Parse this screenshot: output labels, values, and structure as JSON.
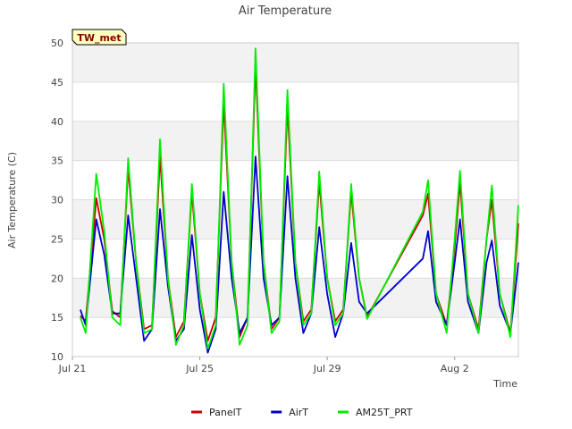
{
  "chart_data": {
    "type": "line",
    "title": "Air Temperature",
    "badge": "TW_met",
    "xlabel": "Time",
    "ylabel": "Air Temperature (C)",
    "xlim": [
      "2024-07-21",
      "2024-08-04"
    ],
    "ylim": [
      10,
      50
    ],
    "x_ticks": [
      {
        "label": "Jul 21",
        "date": "2024-07-21"
      },
      {
        "label": "Jul 25",
        "date": "2024-07-25"
      },
      {
        "label": "Jul 29",
        "date": "2024-07-29"
      },
      {
        "label": "Aug 2",
        "date": "2024-08-02"
      }
    ],
    "y_ticks": [
      10,
      15,
      20,
      25,
      30,
      35,
      40,
      45,
      50
    ],
    "grid": true,
    "legend_position": "bottom",
    "series": [
      {
        "name": "PanelT",
        "color": "#cc0000",
        "points": [
          [
            "2024-07-21 06:00",
            15.2
          ],
          [
            "2024-07-21 10:00",
            14.5
          ],
          [
            "2024-07-21 18:00",
            30.2
          ],
          [
            "2024-07-22 00:00",
            25.0
          ],
          [
            "2024-07-22 06:00",
            15.8
          ],
          [
            "2024-07-22 12:00",
            15.0
          ],
          [
            "2024-07-22 18:00",
            34.0
          ],
          [
            "2024-07-23 00:00",
            22.0
          ],
          [
            "2024-07-23 06:00",
            13.5
          ],
          [
            "2024-07-23 12:00",
            14.0
          ],
          [
            "2024-07-23 18:00",
            35.5
          ],
          [
            "2024-07-24 00:00",
            20.0
          ],
          [
            "2024-07-24 06:00",
            12.5
          ],
          [
            "2024-07-24 12:00",
            14.5
          ],
          [
            "2024-07-24 18:00",
            31.0
          ],
          [
            "2024-07-25 00:00",
            18.0
          ],
          [
            "2024-07-25 06:00",
            12.0
          ],
          [
            "2024-07-25 12:00",
            15.0
          ],
          [
            "2024-07-25 18:00",
            42.5
          ],
          [
            "2024-07-26 00:00",
            22.0
          ],
          [
            "2024-07-26 06:00",
            12.5
          ],
          [
            "2024-07-26 12:00",
            15.0
          ],
          [
            "2024-07-26 18:00",
            47.3
          ],
          [
            "2024-07-27 00:00",
            22.0
          ],
          [
            "2024-07-27 06:00",
            13.5
          ],
          [
            "2024-07-27 12:00",
            15.0
          ],
          [
            "2024-07-27 18:00",
            42.0
          ],
          [
            "2024-07-28 00:00",
            22.0
          ],
          [
            "2024-07-28 06:00",
            14.5
          ],
          [
            "2024-07-28 12:00",
            16.0
          ],
          [
            "2024-07-28 18:00",
            32.3
          ],
          [
            "2024-07-29 00:00",
            20.0
          ],
          [
            "2024-07-29 06:00",
            14.5
          ],
          [
            "2024-07-29 12:00",
            16.0
          ],
          [
            "2024-07-29 18:00",
            31.0
          ],
          [
            "2024-07-30 00:00",
            20.0
          ],
          [
            "2024-07-30 06:00",
            15.0
          ],
          [
            "2024-08-01 00:00",
            28.0
          ],
          [
            "2024-08-01 04:00",
            30.8
          ],
          [
            "2024-08-01 10:00",
            18.0
          ],
          [
            "2024-08-01 18:00",
            14.0
          ],
          [
            "2024-08-02 00:00",
            24.0
          ],
          [
            "2024-08-02 04:00",
            32.2
          ],
          [
            "2024-08-02 10:00",
            18.0
          ],
          [
            "2024-08-02 18:00",
            13.5
          ],
          [
            "2024-08-03 00:00",
            25.0
          ],
          [
            "2024-08-03 04:00",
            30.0
          ],
          [
            "2024-08-03 10:00",
            18.0
          ],
          [
            "2024-08-03 18:00",
            13.0
          ],
          [
            "2024-08-04 00:00",
            27.0
          ]
        ]
      },
      {
        "name": "AirT",
        "color": "#0000cc",
        "points": [
          [
            "2024-07-21 06:00",
            16.0
          ],
          [
            "2024-07-21 10:00",
            14.0
          ],
          [
            "2024-07-21 18:00",
            27.5
          ],
          [
            "2024-07-22 00:00",
            23.0
          ],
          [
            "2024-07-22 06:00",
            15.5
          ],
          [
            "2024-07-22 12:00",
            15.5
          ],
          [
            "2024-07-22 18:00",
            28.0
          ],
          [
            "2024-07-23 00:00",
            20.0
          ],
          [
            "2024-07-23 06:00",
            12.0
          ],
          [
            "2024-07-23 12:00",
            13.5
          ],
          [
            "2024-07-23 18:00",
            28.8
          ],
          [
            "2024-07-24 00:00",
            19.0
          ],
          [
            "2024-07-24 06:00",
            12.0
          ],
          [
            "2024-07-24 12:00",
            13.5
          ],
          [
            "2024-07-24 18:00",
            25.5
          ],
          [
            "2024-07-25 00:00",
            16.0
          ],
          [
            "2024-07-25 06:00",
            10.5
          ],
          [
            "2024-07-25 12:00",
            13.5
          ],
          [
            "2024-07-25 18:00",
            31.0
          ],
          [
            "2024-07-26 00:00",
            20.0
          ],
          [
            "2024-07-26 06:00",
            13.0
          ],
          [
            "2024-07-26 12:00",
            15.0
          ],
          [
            "2024-07-26 18:00",
            35.5
          ],
          [
            "2024-07-27 00:00",
            20.0
          ],
          [
            "2024-07-27 06:00",
            14.0
          ],
          [
            "2024-07-27 12:00",
            15.0
          ],
          [
            "2024-07-27 18:00",
            33.0
          ],
          [
            "2024-07-28 00:00",
            20.0
          ],
          [
            "2024-07-28 06:00",
            13.0
          ],
          [
            "2024-07-28 12:00",
            15.5
          ],
          [
            "2024-07-28 18:00",
            26.5
          ],
          [
            "2024-07-29 00:00",
            18.0
          ],
          [
            "2024-07-29 06:00",
            12.5
          ],
          [
            "2024-07-29 12:00",
            15.5
          ],
          [
            "2024-07-29 18:00",
            24.5
          ],
          [
            "2024-07-30 00:00",
            17.0
          ],
          [
            "2024-07-30 06:00",
            15.5
          ],
          [
            "2024-08-01 00:00",
            22.5
          ],
          [
            "2024-08-01 04:00",
            26.0
          ],
          [
            "2024-08-01 10:00",
            17.0
          ],
          [
            "2024-08-01 18:00",
            14.0
          ],
          [
            "2024-08-02 00:00",
            22.0
          ],
          [
            "2024-08-02 04:00",
            27.5
          ],
          [
            "2024-08-02 10:00",
            17.0
          ],
          [
            "2024-08-02 18:00",
            13.0
          ],
          [
            "2024-08-03 00:00",
            22.0
          ],
          [
            "2024-08-03 04:00",
            24.8
          ],
          [
            "2024-08-03 10:00",
            16.5
          ],
          [
            "2024-08-03 18:00",
            13.0
          ],
          [
            "2024-08-04 00:00",
            22.0
          ]
        ]
      },
      {
        "name": "AM25T_PRT",
        "color": "#00ee00",
        "points": [
          [
            "2024-07-21 06:00",
            15.0
          ],
          [
            "2024-07-21 10:00",
            13.0
          ],
          [
            "2024-07-21 18:00",
            33.3
          ],
          [
            "2024-07-22 00:00",
            26.0
          ],
          [
            "2024-07-22 06:00",
            15.0
          ],
          [
            "2024-07-22 12:00",
            14.0
          ],
          [
            "2024-07-22 18:00",
            35.3
          ],
          [
            "2024-07-23 00:00",
            22.0
          ],
          [
            "2024-07-23 06:00",
            13.0
          ],
          [
            "2024-07-23 12:00",
            13.5
          ],
          [
            "2024-07-23 18:00",
            37.7
          ],
          [
            "2024-07-24 00:00",
            20.0
          ],
          [
            "2024-07-24 06:00",
            11.5
          ],
          [
            "2024-07-24 12:00",
            14.0
          ],
          [
            "2024-07-24 18:00",
            32.0
          ],
          [
            "2024-07-25 00:00",
            18.0
          ],
          [
            "2024-07-25 06:00",
            11.0
          ],
          [
            "2024-07-25 12:00",
            14.0
          ],
          [
            "2024-07-25 18:00",
            44.8
          ],
          [
            "2024-07-26 00:00",
            22.0
          ],
          [
            "2024-07-26 06:00",
            11.5
          ],
          [
            "2024-07-26 12:00",
            14.0
          ],
          [
            "2024-07-26 18:00",
            49.3
          ],
          [
            "2024-07-27 00:00",
            22.0
          ],
          [
            "2024-07-27 06:00",
            13.0
          ],
          [
            "2024-07-27 12:00",
            14.5
          ],
          [
            "2024-07-27 18:00",
            44.0
          ],
          [
            "2024-07-28 00:00",
            22.0
          ],
          [
            "2024-07-28 06:00",
            14.0
          ],
          [
            "2024-07-28 12:00",
            15.5
          ],
          [
            "2024-07-28 18:00",
            33.6
          ],
          [
            "2024-07-29 00:00",
            20.0
          ],
          [
            "2024-07-29 06:00",
            14.0
          ],
          [
            "2024-07-29 12:00",
            15.5
          ],
          [
            "2024-07-29 18:00",
            32.0
          ],
          [
            "2024-07-30 00:00",
            20.0
          ],
          [
            "2024-07-30 06:00",
            14.8
          ],
          [
            "2024-08-01 00:00",
            28.5
          ],
          [
            "2024-08-01 04:00",
            32.5
          ],
          [
            "2024-08-01 10:00",
            18.0
          ],
          [
            "2024-08-01 18:00",
            13.0
          ],
          [
            "2024-08-02 00:00",
            25.0
          ],
          [
            "2024-08-02 04:00",
            33.7
          ],
          [
            "2024-08-02 10:00",
            18.0
          ],
          [
            "2024-08-02 18:00",
            13.0
          ],
          [
            "2024-08-03 00:00",
            25.0
          ],
          [
            "2024-08-03 04:00",
            31.8
          ],
          [
            "2024-08-03 10:00",
            18.0
          ],
          [
            "2024-08-03 18:00",
            12.5
          ],
          [
            "2024-08-04 00:00",
            29.3
          ]
        ]
      }
    ]
  }
}
